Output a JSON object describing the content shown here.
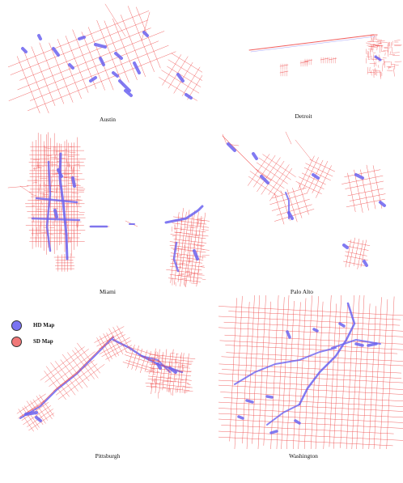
{
  "colors": {
    "hd": "#6b63f0",
    "sd": "#ef4b4b",
    "background": "#ffffff"
  },
  "legend": [
    {
      "label": "HD Map",
      "color": "#7a74f2"
    },
    {
      "label": "SD Map",
      "color": "#f07878"
    }
  ],
  "cities": [
    {
      "name": "Austin"
    },
    {
      "name": "Detroit"
    },
    {
      "name": "Miami"
    },
    {
      "name": "Palo Alto"
    },
    {
      "name": "Pittsburgh"
    },
    {
      "name": "Washington"
    }
  ]
}
